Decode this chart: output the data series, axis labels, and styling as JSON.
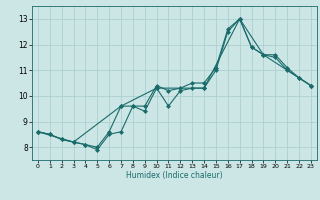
{
  "xlabel": "Humidex (Indice chaleur)",
  "xlim": [
    -0.5,
    23.5
  ],
  "ylim": [
    7.5,
    13.5
  ],
  "yticks": [
    8,
    9,
    10,
    11,
    12,
    13
  ],
  "xticks": [
    0,
    1,
    2,
    3,
    4,
    5,
    6,
    7,
    8,
    9,
    10,
    11,
    12,
    13,
    14,
    15,
    16,
    17,
    18,
    19,
    20,
    21,
    22,
    23
  ],
  "bg_color": "#cce5e5",
  "line_color": "#1a6b6b",
  "series": [
    {
      "x": [
        0,
        1,
        2,
        3,
        4,
        5,
        6,
        7,
        8,
        9,
        10,
        11,
        12,
        13,
        14,
        15,
        16,
        17,
        18,
        19,
        20,
        21,
        22,
        23
      ],
      "y": [
        8.6,
        8.5,
        8.3,
        8.2,
        8.1,
        7.9,
        8.5,
        8.6,
        9.6,
        9.4,
        10.3,
        9.6,
        10.2,
        10.3,
        10.3,
        11.0,
        12.5,
        13.0,
        11.9,
        11.6,
        11.5,
        11.0,
        10.7,
        10.4
      ]
    },
    {
      "x": [
        0,
        1,
        2,
        3,
        4,
        5,
        6,
        7,
        8,
        9,
        10,
        11,
        12,
        13,
        14,
        15,
        16,
        17,
        18,
        19,
        20,
        21,
        22,
        23
      ],
      "y": [
        8.6,
        8.5,
        8.3,
        8.2,
        8.1,
        8.0,
        8.6,
        9.6,
        9.6,
        9.6,
        10.4,
        10.2,
        10.3,
        10.5,
        10.5,
        11.1,
        12.6,
        13.0,
        11.9,
        11.6,
        11.6,
        11.1,
        10.7,
        10.4
      ]
    },
    {
      "x": [
        0,
        3,
        7,
        10,
        14,
        17,
        19,
        23
      ],
      "y": [
        8.6,
        8.2,
        9.6,
        10.3,
        10.3,
        13.0,
        11.6,
        10.4
      ]
    }
  ]
}
